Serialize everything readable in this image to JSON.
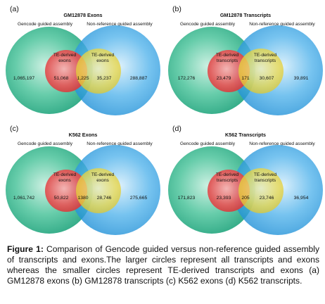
{
  "panels": [
    {
      "letter": "(a)",
      "title": "GM12878 Exons",
      "left_label": "Gencode guided assembly",
      "right_label": "Non-reference guided assembly",
      "te_left_label": [
        "TE-derived",
        "exons"
      ],
      "te_right_label": [
        "TE-derived",
        "exons"
      ],
      "values": {
        "left_only": "1,065,197",
        "te_left_only": "51,068",
        "te_intersection": "1,225",
        "te_right_only": "35,237",
        "right_only": "288,887"
      }
    },
    {
      "letter": "(b)",
      "title": "GM12878 Transcripts",
      "left_label": "Gencode guided assembly",
      "right_label": "Non-reference guided assembly",
      "te_left_label": [
        "TE-derived",
        "transcripts"
      ],
      "te_right_label": [
        "TE-derived",
        "transcripts"
      ],
      "values": {
        "left_only": "172,276",
        "te_left_only": "23,479",
        "te_intersection": "171",
        "te_right_only": "30,607",
        "right_only": "39,891"
      }
    },
    {
      "letter": "(c)",
      "title": "K562 Exons",
      "left_label": "Gencode guided assembly",
      "right_label": "Non-reference guided assembly",
      "te_left_label": [
        "TE-derived",
        "exons"
      ],
      "te_right_label": [
        "TE-derived",
        "exons"
      ],
      "values": {
        "left_only": "1,061,742",
        "te_left_only": "50,822",
        "te_intersection": "1380",
        "te_right_only": "28,746",
        "right_only": "275,665"
      }
    },
    {
      "letter": "(d)",
      "title": "K562 Transcripts",
      "left_label": "Gencode guided assembly",
      "right_label": "Non-reference guided assembly",
      "te_left_label": [
        "TE-derived",
        "transcripts"
      ],
      "te_right_label": [
        "TE-derived",
        "transcripts"
      ],
      "values": {
        "left_only": "171,823",
        "te_left_only": "23,393",
        "te_intersection": "205",
        "te_right_only": "23,746",
        "right_only": "36,954"
      }
    }
  ],
  "caption": {
    "label": "Figure 1:",
    "text": " Comparison of Gencode guided versus non-reference guided assembly of transcripts and exons.The larger circles represent all transcripts and exons whereas the smaller circles represent TE-derived transcripts and exons (a) GM12878 exons (b) GM12878 transcripts (c) K562 exons (d) K562 transcripts."
  },
  "colors": {
    "left_big": "#3fbf9a",
    "right_big": "#3aa6e6",
    "te_left": "#e14b4b",
    "te_right": "#e6d23a",
    "text": "#111111"
  }
}
